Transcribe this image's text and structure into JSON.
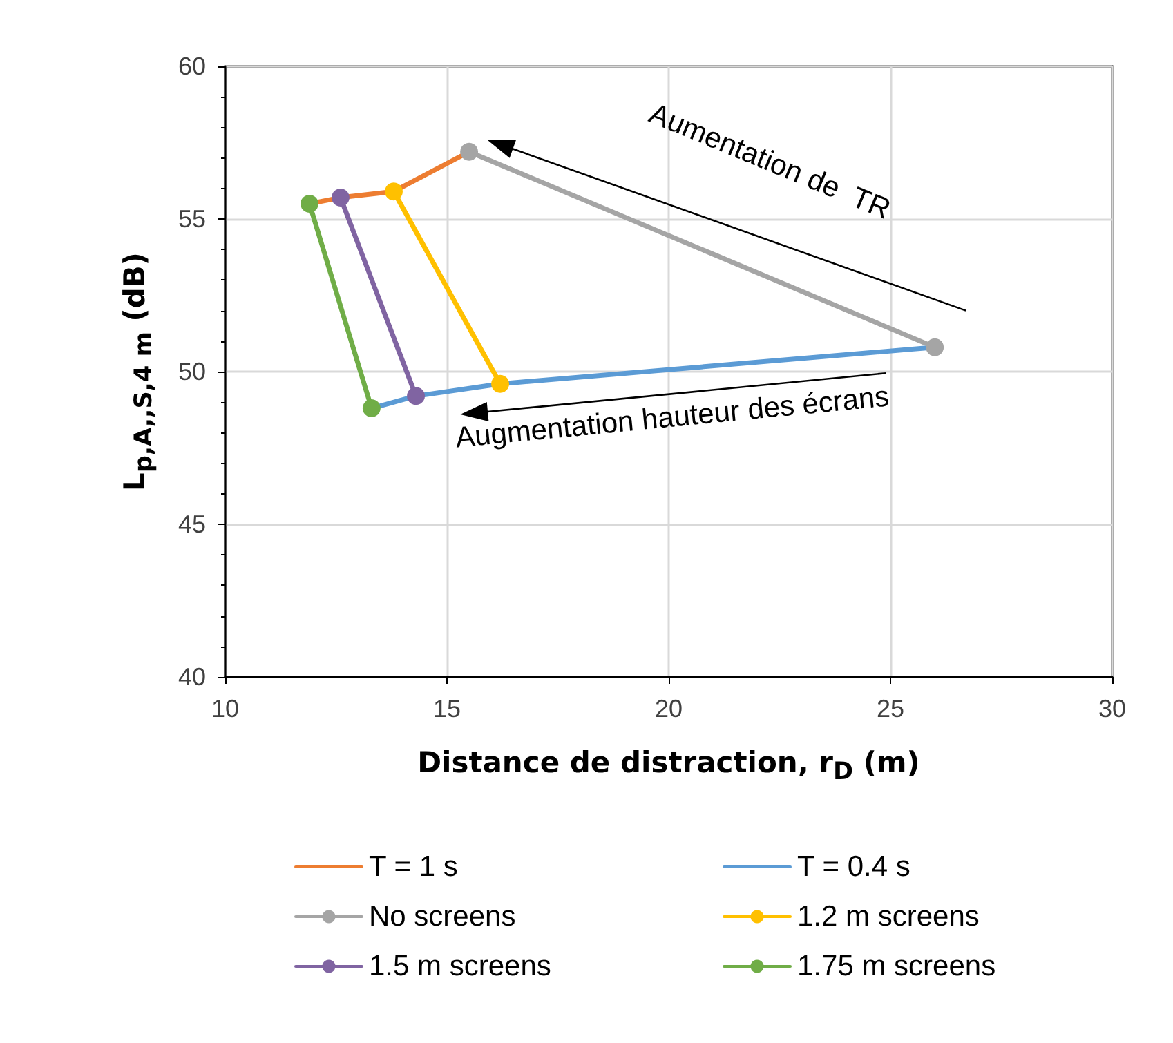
{
  "chart_data": {
    "type": "line",
    "xlabel": "Distance de distraction, r$_{D}$ (m)",
    "ylabel": "L$_{p,A,,S,4 m}$ (dB)",
    "xlim": [
      10,
      30
    ],
    "xticks": [
      10,
      15,
      20,
      25,
      30
    ],
    "ylim": [
      40,
      60
    ],
    "yticks": [
      40,
      45,
      50,
      55,
      60
    ],
    "grid": true,
    "legend": "bottom",
    "annotations": [
      "Aumentation de  TR",
      "Augmentation hauteur des écrans"
    ],
    "series": [
      {
        "name": "T = 1 s",
        "color": "#ed7d31",
        "marker": "none",
        "x": [
          11.9,
          12.6,
          13.8,
          15.5
        ],
        "values": [
          55.5,
          55.7,
          55.9,
          57.2
        ]
      },
      {
        "name": "T = 0.4 s",
        "color": "#5b9bd5",
        "marker": "none",
        "x": [
          13.3,
          14.3,
          16.2,
          26.0
        ],
        "values": [
          48.8,
          49.2,
          49.6,
          50.8
        ]
      },
      {
        "name": "No screens",
        "color": "#a5a5a5",
        "marker": "circle",
        "x": [
          15.5,
          26.0
        ],
        "values": [
          57.2,
          50.8
        ]
      },
      {
        "name": "1.2 m screens",
        "color": "#ffc000",
        "marker": "circle",
        "x": [
          13.8,
          16.2
        ],
        "values": [
          55.9,
          49.6
        ]
      },
      {
        "name": "1.5 m screens",
        "color": "#8064a2",
        "marker": "circle",
        "x": [
          12.6,
          14.3
        ],
        "values": [
          55.7,
          49.2
        ]
      },
      {
        "name": "1.75 m screens",
        "color": "#70ad47",
        "marker": "circle",
        "x": [
          11.9,
          13.3
        ],
        "values": [
          55.5,
          48.8
        ]
      }
    ]
  }
}
